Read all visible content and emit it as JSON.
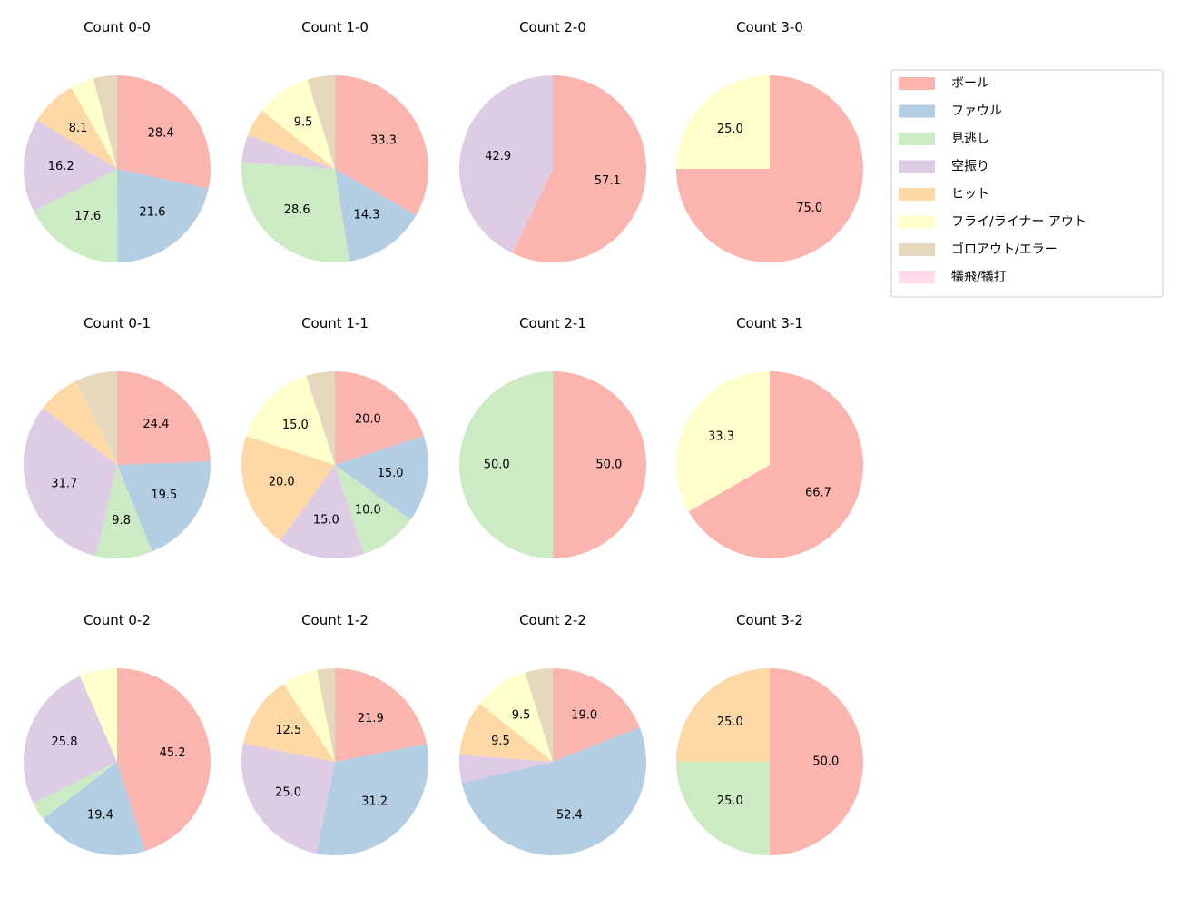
{
  "chart_data": [
    {
      "type": "pie",
      "title": "Count 0-0",
      "values": [
        28.4,
        21.6,
        17.6,
        16.2,
        8.1,
        4.1,
        4.1,
        0
      ]
    },
    {
      "type": "pie",
      "title": "Count 1-0",
      "values": [
        33.3,
        14.3,
        28.6,
        4.8,
        4.8,
        9.5,
        4.8,
        0
      ]
    },
    {
      "type": "pie",
      "title": "Count 2-0",
      "values": [
        57.1,
        0,
        0,
        42.9,
        0,
        0,
        0,
        0
      ]
    },
    {
      "type": "pie",
      "title": "Count 3-0",
      "values": [
        75.0,
        0,
        0,
        0,
        0,
        25.0,
        0,
        0
      ]
    },
    {
      "type": "pie",
      "title": "Count 0-1",
      "values": [
        24.4,
        19.5,
        9.8,
        31.7,
        7.3,
        0,
        7.3,
        0
      ]
    },
    {
      "type": "pie",
      "title": "Count 1-1",
      "values": [
        20.0,
        15.0,
        10.0,
        15.0,
        20.0,
        15.0,
        5.0,
        0
      ]
    },
    {
      "type": "pie",
      "title": "Count 2-1",
      "values": [
        50.0,
        0,
        50.0,
        0,
        0,
        0,
        0,
        0
      ]
    },
    {
      "type": "pie",
      "title": "Count 3-1",
      "values": [
        66.7,
        0,
        0,
        0,
        0,
        33.3,
        0,
        0
      ]
    },
    {
      "type": "pie",
      "title": "Count 0-2",
      "values": [
        45.2,
        19.4,
        3.2,
        25.8,
        0,
        6.5,
        0,
        0
      ]
    },
    {
      "type": "pie",
      "title": "Count 1-2",
      "values": [
        21.9,
        31.2,
        0,
        25.0,
        12.5,
        6.2,
        3.1,
        0
      ]
    },
    {
      "type": "pie",
      "title": "Count 2-2",
      "values": [
        19.0,
        52.4,
        0,
        4.8,
        9.5,
        9.5,
        4.8,
        0
      ]
    },
    {
      "type": "pie",
      "title": "Count 3-2",
      "values": [
        50.0,
        0,
        25.0,
        0,
        25.0,
        0,
        0,
        0
      ]
    }
  ],
  "legend": {
    "placement": "upper-right",
    "labels": [
      "ボール",
      "ファウル",
      "見逃し",
      "空振り",
      "ヒット",
      "フライ/ライナー アウト",
      "ゴロアウト/エラー",
      "犠飛/犠打"
    ],
    "colors": [
      "#fbb4ae",
      "#b3cde3",
      "#ccebc5",
      "#decbe4",
      "#fed9a6",
      "#ffffcc",
      "#e5d8bd",
      "#fddaec"
    ]
  },
  "label_format": "%.1f",
  "start_angle": "top, clockwise"
}
